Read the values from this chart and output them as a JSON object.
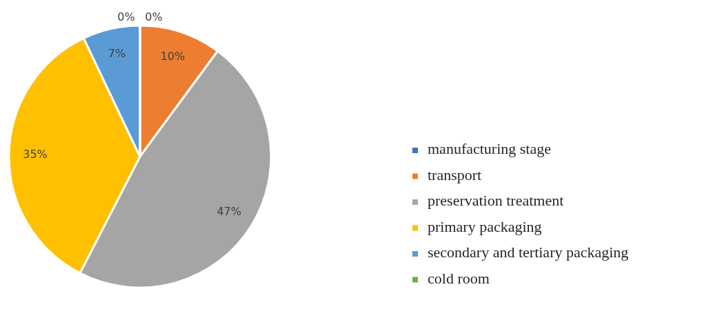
{
  "chart_data": {
    "type": "pie",
    "categories": [
      "manufacturing stage",
      "transport",
      "preservation treatment",
      "primary packaging",
      "secondary and tertiary packaging",
      "cold room"
    ],
    "values": [
      0,
      10,
      47,
      35,
      7,
      0
    ],
    "colors": [
      "#4472c4",
      "#ed7d31",
      "#a5a5a5",
      "#ffc000",
      "#5b9bd5",
      "#70ad47"
    ],
    "value_labels": [
      "0%",
      "10%",
      "47%",
      "35%",
      "7%",
      "0%"
    ],
    "legend": "right"
  }
}
